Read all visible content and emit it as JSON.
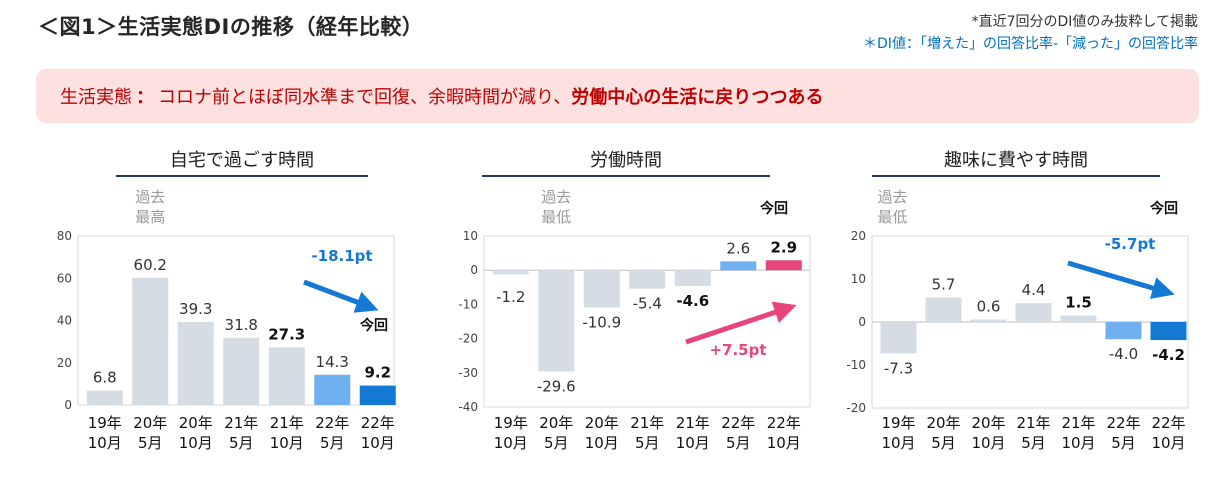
{
  "header": {
    "title": "＜図1＞生活実態DIの推移（経年比較）",
    "note1": "*直近7回分のDI値のみ抜粋して掲載",
    "note2": "＊DI値：「増えた」の回答比率-「減った」の回答比率"
  },
  "banner": {
    "lead": "生活実態",
    "colon": "：",
    "plain": "コロナ前とほぼ同水準まで回復、余暇時間が減り、",
    "strong": "労働中心の生活に戻りつつある"
  },
  "colors": {
    "gray_bar": "#d6dce4",
    "light_blue": "#6fb0f0",
    "blue": "#1479d3",
    "pink": "#e8457a",
    "rule": "#1f3864"
  },
  "chart_data": [
    {
      "type": "bar",
      "title": "自宅で過ごす時間",
      "categories": [
        [
          "19年",
          "10月"
        ],
        [
          "20年",
          "5月"
        ],
        [
          "20年",
          "10月"
        ],
        [
          "21年",
          "5月"
        ],
        [
          "21年",
          "10月"
        ],
        [
          "22年",
          "5月"
        ],
        [
          "22年",
          "10月"
        ]
      ],
      "values": [
        6.8,
        60.2,
        39.3,
        31.8,
        27.3,
        14.3,
        9.2
      ],
      "value_labels": [
        "6.8",
        "60.2",
        "39.3",
        "31.8",
        "27.3",
        "14.3",
        "9.2"
      ],
      "bold_labels": [
        4,
        6
      ],
      "bar_styles": [
        "gray",
        "gray",
        "gray",
        "gray",
        "gray",
        "light",
        "blue"
      ],
      "ylim": [
        0,
        80
      ],
      "yticks": [
        0,
        20,
        40,
        60,
        80
      ],
      "ytick_labels": [
        "0",
        "20",
        "40",
        "60",
        "80"
      ],
      "annotation": {
        "text": [
          "過去",
          "最高"
        ],
        "index": 1
      },
      "current_label": "今回",
      "trend": {
        "text": "-18.1pt",
        "color": "blue"
      }
    },
    {
      "type": "bar",
      "title": "労働時間",
      "categories": [
        [
          "19年",
          "10月"
        ],
        [
          "20年",
          "5月"
        ],
        [
          "20年",
          "10月"
        ],
        [
          "21年",
          "5月"
        ],
        [
          "21年",
          "10月"
        ],
        [
          "22年",
          "5月"
        ],
        [
          "22年",
          "10月"
        ]
      ],
      "values": [
        -1.2,
        -29.6,
        -10.9,
        -5.4,
        -4.6,
        2.6,
        2.9
      ],
      "value_labels": [
        "-1.2",
        "-29.6",
        "-10.9",
        "-5.4",
        "-4.6",
        "2.6",
        "2.9"
      ],
      "bold_labels": [
        4,
        6
      ],
      "bar_styles": [
        "gray",
        "gray",
        "gray",
        "gray",
        "gray",
        "light",
        "pink"
      ],
      "ylim": [
        -40,
        10
      ],
      "yticks": [
        10,
        0,
        -10,
        -20,
        -30,
        -40
      ],
      "ytick_labels": [
        "10",
        "0",
        "-10",
        "-20",
        "-30",
        "-40"
      ],
      "annotation": {
        "text": [
          "過去",
          "最低"
        ],
        "index": 1
      },
      "current_label": "今回",
      "trend": {
        "text": "+7.5pt",
        "color": "pink"
      }
    },
    {
      "type": "bar",
      "title": "趣味に費やす時間",
      "categories": [
        [
          "19年",
          "10月"
        ],
        [
          "20年",
          "5月"
        ],
        [
          "20年",
          "10月"
        ],
        [
          "21年",
          "5月"
        ],
        [
          "21年",
          "10月"
        ],
        [
          "22年",
          "5月"
        ],
        [
          "22年",
          "10月"
        ]
      ],
      "values": [
        -7.3,
        5.7,
        0.6,
        4.4,
        1.5,
        -4.0,
        -4.2
      ],
      "value_labels": [
        "-7.3",
        "5.7",
        "0.6",
        "4.4",
        "1.5",
        "-4.0",
        "-4.2"
      ],
      "bold_labels": [
        4,
        6
      ],
      "bar_styles": [
        "gray",
        "gray",
        "gray",
        "gray",
        "gray",
        "light",
        "blue"
      ],
      "ylim": [
        -20,
        20
      ],
      "yticks": [
        20,
        10,
        0,
        -10,
        -20
      ],
      "ytick_labels": [
        "20",
        "10",
        "0",
        "-10",
        "-20"
      ],
      "annotation": {
        "text": [
          "過去",
          "最低"
        ],
        "index": 0
      },
      "current_label": "今回",
      "trend": {
        "text": "-5.7pt",
        "color": "blue"
      }
    }
  ]
}
